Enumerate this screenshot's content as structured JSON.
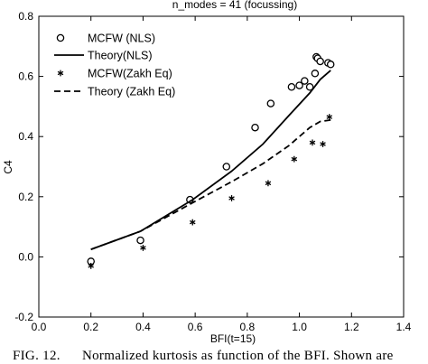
{
  "chart_data": {
    "type": "scatter",
    "title": "n_modes = 41  (focussing)",
    "xlabel": "BFI(t=15)",
    "ylabel": "C4",
    "xlim": [
      0.0,
      1.4
    ],
    "ylim": [
      -0.2,
      0.8
    ],
    "x_ticks": [
      0.0,
      0.2,
      0.4,
      0.6,
      0.8,
      1.0,
      1.2,
      1.4
    ],
    "x_tick_labels": [
      "0.0",
      "0.2",
      "0.4",
      "0.6",
      "0.8",
      "1.0",
      "1.2",
      "1.4"
    ],
    "y_ticks": [
      -0.2,
      0.0,
      0.2,
      0.4,
      0.6,
      0.8
    ],
    "y_tick_labels": [
      "-0.2",
      "0.0",
      "0.2",
      "0.4",
      "0.6",
      "0.8"
    ],
    "grid": false,
    "legend_position": "top-left",
    "series": [
      {
        "name": "MCFW (NLS)",
        "style": "scatter",
        "marker": "open-circle",
        "x": [
          0.2,
          0.39,
          0.58,
          0.72,
          0.83,
          0.89,
          0.97,
          1.0,
          1.02,
          1.04,
          1.06,
          1.065,
          1.07,
          1.08,
          1.11,
          1.12
        ],
        "y": [
          -0.015,
          0.055,
          0.19,
          0.3,
          0.43,
          0.51,
          0.565,
          0.57,
          0.585,
          0.565,
          0.61,
          0.665,
          0.66,
          0.65,
          0.645,
          0.64
        ]
      },
      {
        "name": "Theory(NLS)",
        "style": "line",
        "dash": "solid",
        "x": [
          0.2,
          0.39,
          0.59,
          0.74,
          0.86,
          0.96,
          1.04,
          1.08,
          1.12
        ],
        "y": [
          0.025,
          0.085,
          0.19,
          0.285,
          0.375,
          0.47,
          0.545,
          0.59,
          0.62
        ]
      },
      {
        "name": "MCFW(Zakh Eq)",
        "style": "scatter",
        "marker": "asterisk",
        "x": [
          0.2,
          0.4,
          0.59,
          0.74,
          0.88,
          0.98,
          1.05,
          1.09,
          1.115
        ],
        "y": [
          -0.03,
          0.03,
          0.115,
          0.195,
          0.245,
          0.325,
          0.38,
          0.375,
          0.465
        ]
      },
      {
        "name": "Theory (Zakh Eq)",
        "style": "line",
        "dash": "dashed",
        "x": [
          0.2,
          0.39,
          0.59,
          0.74,
          0.86,
          0.96,
          1.04,
          1.08,
          1.12
        ],
        "y": [
          0.025,
          0.085,
          0.18,
          0.25,
          0.31,
          0.37,
          0.43,
          0.45,
          0.455
        ]
      }
    ]
  },
  "caption": {
    "parts": [
      "FIG. 12.",
      "Normalized kurtosis as function of the BFI. Shown are"
    ]
  }
}
